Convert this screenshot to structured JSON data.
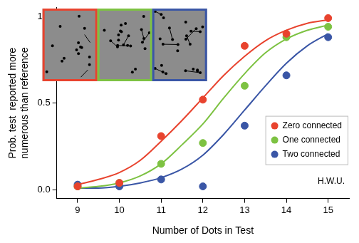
{
  "chart_data": {
    "type": "scatter",
    "x_label": "Number of Dots in Test",
    "y_label": [
      "Prob. test  reported more",
      "numerous than reference"
    ],
    "annotation": "H.W.U.",
    "x": [
      9,
      10,
      11,
      12,
      13,
      14,
      15
    ],
    "xlim": [
      8.5,
      15.5
    ],
    "xticks": [
      9,
      10,
      11,
      12,
      13,
      14,
      15
    ],
    "ylim": [
      -0.05,
      1.05
    ],
    "yticks": [
      {
        "value": 0,
        "label": "0.0"
      },
      {
        "value": 0.5,
        "label": "0.5"
      },
      {
        "value": 1,
        "label": "1.0"
      }
    ],
    "grid": false,
    "legend": "lower right",
    "marker": "circle",
    "line_style": "solid",
    "fit_x": [
      9,
      9.5,
      10,
      10.5,
      11,
      11.5,
      12,
      12.5,
      13,
      13.5,
      14,
      14.5,
      15
    ],
    "series": [
      {
        "name": "Zero connected",
        "color": "#e8432e",
        "values": [
          0.02,
          0.04,
          0.31,
          0.52,
          0.83,
          0.9,
          0.99
        ],
        "fit": [
          0.03,
          0.06,
          0.1,
          0.17,
          0.28,
          0.4,
          0.53,
          0.66,
          0.77,
          0.86,
          0.92,
          0.96,
          0.98
        ]
      },
      {
        "name": "One connected",
        "color": "#7dc242",
        "values": [
          0.02,
          0.04,
          0.15,
          0.27,
          0.6,
          0.88,
          0.94
        ],
        "fit": [
          0.01,
          0.02,
          0.04,
          0.08,
          0.15,
          0.26,
          0.38,
          0.53,
          0.67,
          0.79,
          0.87,
          0.92,
          0.95
        ]
      },
      {
        "name": "Two connected",
        "color": "#3a56a6",
        "values": [
          0.03,
          0.02,
          0.06,
          0.02,
          0.37,
          0.66,
          0.88
        ],
        "fit": [
          0.01,
          0.01,
          0.02,
          0.04,
          0.07,
          0.12,
          0.2,
          0.32,
          0.46,
          0.6,
          0.73,
          0.83,
          0.9
        ]
      }
    ]
  }
}
